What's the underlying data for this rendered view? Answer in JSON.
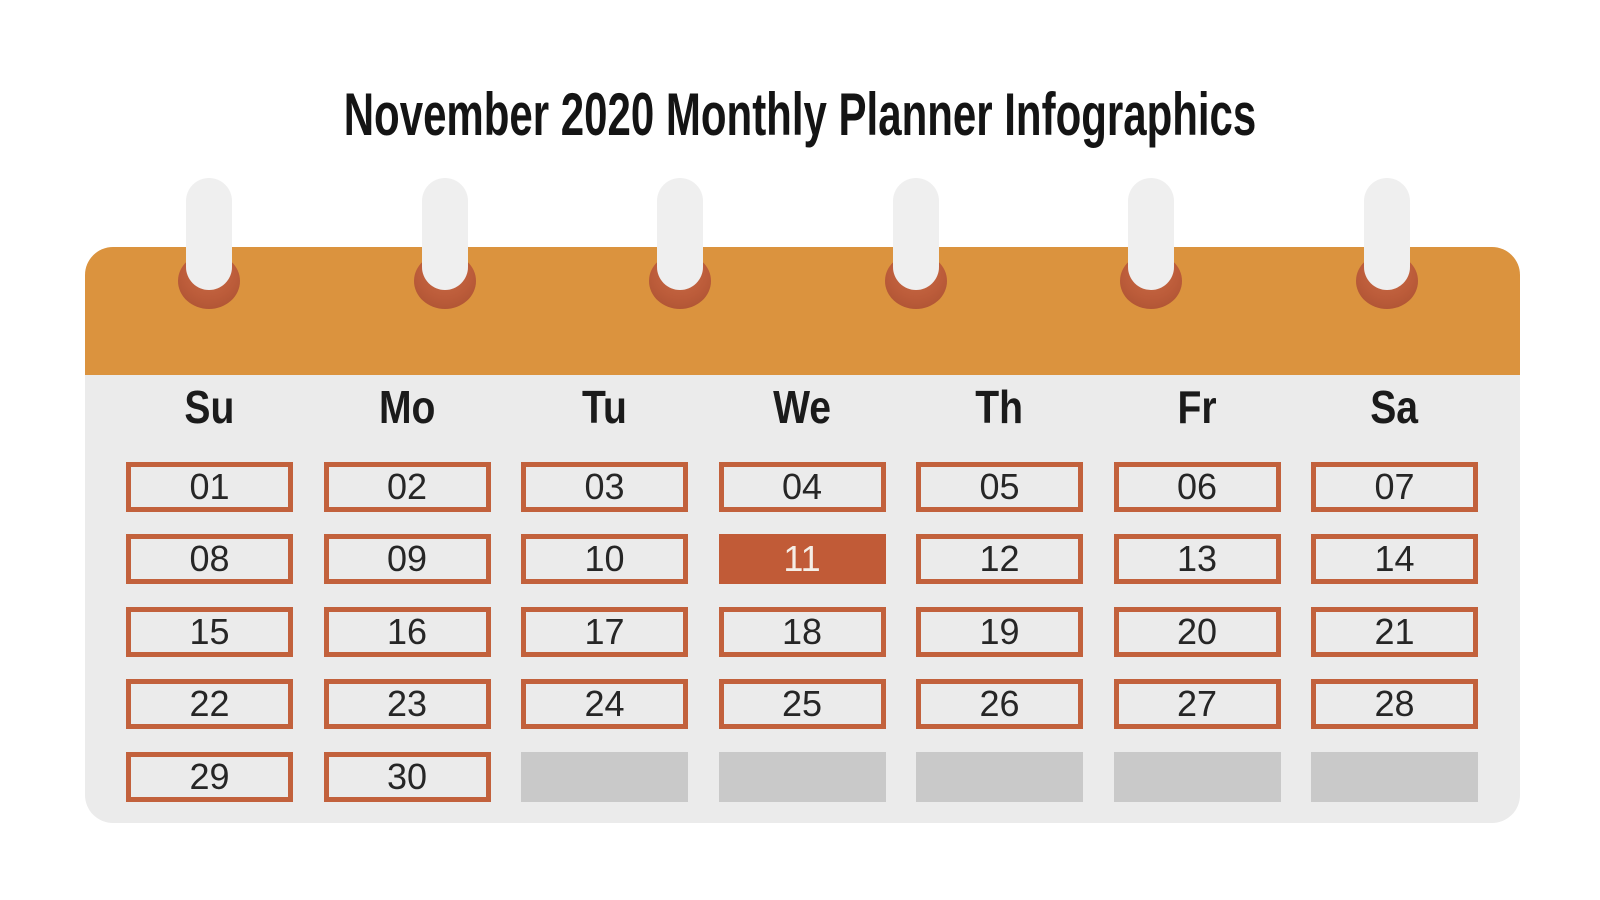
{
  "title": "November 2020 Monthly Planner Infographics",
  "calendar": {
    "day_headers": [
      "Su",
      "Mo",
      "Tu",
      "We",
      "Th",
      "Fr",
      "Sa"
    ],
    "weeks": [
      [
        "01",
        "02",
        "03",
        "04",
        "05",
        "06",
        "07"
      ],
      [
        "08",
        "09",
        "10",
        "11",
        "12",
        "13",
        "14"
      ],
      [
        "15",
        "16",
        "17",
        "18",
        "19",
        "20",
        "21"
      ],
      [
        "22",
        "23",
        "24",
        "25",
        "26",
        "27",
        "28"
      ],
      [
        "29",
        "30",
        "",
        "",
        "",
        "",
        ""
      ]
    ],
    "highlighted_day": "11",
    "colors": {
      "header_bar": "#DB933E",
      "ring_hole": "#BC5C3A",
      "paper": "#EBEBEB",
      "cell_border": "#C2613C",
      "highlight_fill": "#C15B37",
      "highlight_text": "#F5EEE6",
      "empty_cell": "#C9C9C9"
    }
  }
}
